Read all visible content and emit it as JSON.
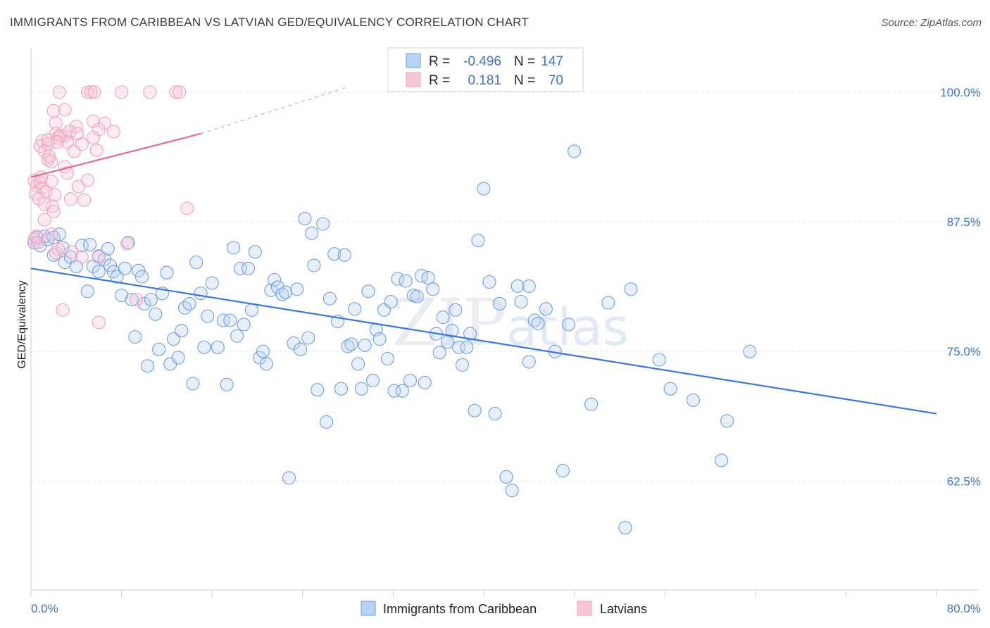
{
  "title": "IMMIGRANTS FROM CARIBBEAN VS LATVIAN GED/EQUIVALENCY CORRELATION CHART",
  "source": "Source: ZipAtlas.com",
  "watermark": "ZIPatlas",
  "chart_data": {
    "type": "scatter",
    "ylabel": "GED/Equivalency",
    "xlim": [
      0,
      80
    ],
    "ylim": [
      52,
      104
    ],
    "x_tick_labels": [
      "0.0%",
      "80.0%"
    ],
    "y_ticks": [
      62.5,
      75.0,
      87.5,
      100.0
    ],
    "y_tick_labels": [
      "62.5%",
      "75.0%",
      "87.5%",
      "100.0%"
    ],
    "grid": true,
    "legend": {
      "placement": "top-center",
      "rows": [
        {
          "r_label": "R =",
          "r_value": "-0.496",
          "n_label": "N =",
          "n_value": "147"
        },
        {
          "r_label": "R =",
          "r_value": "0.181",
          "n_label": "N =",
          "n_value": "70"
        }
      ]
    },
    "colors": {
      "blue": "#6f9fe0",
      "blue_line": "#3b78d4",
      "pink": "#f0a0bd",
      "pink_line": "#e46a95"
    },
    "series": [
      {
        "name": "Immigrants from Caribbean",
        "trend": {
          "x": [
            0,
            80
          ],
          "y": [
            83.0,
            69.0
          ]
        },
        "points": [
          [
            0.3,
            85.5
          ],
          [
            0.5,
            86.0
          ],
          [
            0.8,
            85.2
          ],
          [
            1.2,
            86.1
          ],
          [
            1.5,
            85.8
          ],
          [
            2.0,
            86.0
          ],
          [
            2.5,
            86.3
          ],
          [
            2.8,
            85.0
          ],
          [
            3.0,
            83.6
          ],
          [
            3.5,
            84.1
          ],
          [
            4.0,
            83.2
          ],
          [
            4.5,
            85.2
          ],
          [
            5.0,
            80.8
          ],
          [
            5.2,
            85.3
          ],
          [
            5.5,
            83.2
          ],
          [
            6.0,
            84.2
          ],
          [
            6.5,
            83.9
          ],
          [
            6.8,
            84.9
          ],
          [
            7.0,
            83.3
          ],
          [
            7.3,
            82.7
          ],
          [
            7.6,
            82.2
          ],
          [
            8.0,
            80.4
          ],
          [
            8.3,
            83.0
          ],
          [
            8.6,
            85.5
          ],
          [
            8.9,
            80.0
          ],
          [
            9.2,
            76.4
          ],
          [
            9.5,
            82.8
          ],
          [
            9.8,
            82.2
          ],
          [
            10.0,
            79.6
          ],
          [
            10.3,
            73.6
          ],
          [
            10.6,
            80.0
          ],
          [
            11.0,
            78.6
          ],
          [
            11.3,
            75.2
          ],
          [
            11.6,
            80.6
          ],
          [
            12.0,
            82.6
          ],
          [
            12.3,
            73.8
          ],
          [
            12.6,
            76.2
          ],
          [
            13.0,
            74.4
          ],
          [
            13.3,
            77.0
          ],
          [
            13.6,
            79.2
          ],
          [
            14.0,
            79.6
          ],
          [
            14.3,
            71.9
          ],
          [
            14.6,
            83.6
          ],
          [
            15.0,
            80.6
          ],
          [
            15.3,
            75.4
          ],
          [
            15.6,
            78.4
          ],
          [
            16.0,
            81.6
          ],
          [
            16.5,
            75.4
          ],
          [
            17.0,
            78.0
          ],
          [
            17.3,
            71.8
          ],
          [
            17.6,
            78.0
          ],
          [
            17.9,
            85.0
          ],
          [
            18.2,
            76.5
          ],
          [
            18.5,
            83.0
          ],
          [
            18.8,
            77.6
          ],
          [
            19.2,
            83.0
          ],
          [
            19.5,
            79.0
          ],
          [
            19.8,
            84.6
          ],
          [
            20.2,
            74.4
          ],
          [
            20.5,
            75.0
          ],
          [
            20.8,
            73.8
          ],
          [
            21.2,
            80.9
          ],
          [
            21.5,
            81.9
          ],
          [
            21.8,
            81.2
          ],
          [
            22.2,
            80.5
          ],
          [
            22.5,
            80.7
          ],
          [
            22.8,
            62.8
          ],
          [
            23.2,
            75.8
          ],
          [
            23.5,
            81.0
          ],
          [
            23.8,
            75.2
          ],
          [
            24.2,
            87.8
          ],
          [
            24.5,
            76.3
          ],
          [
            24.8,
            86.4
          ],
          [
            25.0,
            83.3
          ],
          [
            25.3,
            71.3
          ],
          [
            25.8,
            87.3
          ],
          [
            26.1,
            68.2
          ],
          [
            26.4,
            80.1
          ],
          [
            26.8,
            84.4
          ],
          [
            27.1,
            77.9
          ],
          [
            27.4,
            71.4
          ],
          [
            27.7,
            84.3
          ],
          [
            28.0,
            75.5
          ],
          [
            28.3,
            75.7
          ],
          [
            28.6,
            79.1
          ],
          [
            28.9,
            73.8
          ],
          [
            29.2,
            71.4
          ],
          [
            29.5,
            75.6
          ],
          [
            29.8,
            80.8
          ],
          [
            30.2,
            72.2
          ],
          [
            30.5,
            77.1
          ],
          [
            30.8,
            76.2
          ],
          [
            31.2,
            79.0
          ],
          [
            31.5,
            74.3
          ],
          [
            31.8,
            79.8
          ],
          [
            32.1,
            71.2
          ],
          [
            32.4,
            82.0
          ],
          [
            32.8,
            71.2
          ],
          [
            33.1,
            81.8
          ],
          [
            33.5,
            72.2
          ],
          [
            33.8,
            80.4
          ],
          [
            34.1,
            80.3
          ],
          [
            34.5,
            82.3
          ],
          [
            34.8,
            72.0
          ],
          [
            35.1,
            82.1
          ],
          [
            35.5,
            81.0
          ],
          [
            35.8,
            76.7
          ],
          [
            36.1,
            74.9
          ],
          [
            36.4,
            78.3
          ],
          [
            36.8,
            75.9
          ],
          [
            37.2,
            77.0
          ],
          [
            37.5,
            79.0
          ],
          [
            37.8,
            75.4
          ],
          [
            38.1,
            73.7
          ],
          [
            38.5,
            75.4
          ],
          [
            38.8,
            76.7
          ],
          [
            39.2,
            69.3
          ],
          [
            39.5,
            85.7
          ],
          [
            40.0,
            90.7
          ],
          [
            40.5,
            81.7
          ],
          [
            41.0,
            69.0
          ],
          [
            41.4,
            79.6
          ],
          [
            42.0,
            62.9
          ],
          [
            42.5,
            61.6
          ],
          [
            43.0,
            81.3
          ],
          [
            43.3,
            79.8
          ],
          [
            44.0,
            81.3
          ],
          [
            44.5,
            78.0
          ],
          [
            44.8,
            77.7
          ],
          [
            45.5,
            79.1
          ],
          [
            46.3,
            75.0
          ],
          [
            47.0,
            63.5
          ],
          [
            47.5,
            77.6
          ],
          [
            48.0,
            94.3
          ],
          [
            49.5,
            69.9
          ],
          [
            51.0,
            79.7
          ],
          [
            53.0,
            81.0
          ],
          [
            56.5,
            71.4
          ],
          [
            58.5,
            70.3
          ],
          [
            61.0,
            64.5
          ],
          [
            61.5,
            68.3
          ],
          [
            52.5,
            58.0
          ],
          [
            63.5,
            75.0
          ],
          [
            55.5,
            74.2
          ],
          [
            44.0,
            74.0
          ],
          [
            2.0,
            84.3
          ],
          [
            6.0,
            82.7
          ]
        ]
      },
      {
        "name": "Latvians",
        "trend": {
          "x": [
            0,
            15
          ],
          "y": [
            91.8,
            96.0
          ]
        },
        "trend_dashed": {
          "x": [
            15,
            28
          ],
          "y": [
            96.0,
            100.5
          ]
        },
        "points": [
          [
            2.5,
            100.0
          ],
          [
            5.0,
            100.0
          ],
          [
            5.3,
            100.0
          ],
          [
            5.6,
            100.0
          ],
          [
            8.0,
            100.0
          ],
          [
            10.5,
            100.0
          ],
          [
            12.8,
            100.0
          ],
          [
            13.1,
            100.0
          ],
          [
            2.0,
            98.2
          ],
          [
            3.0,
            98.3
          ],
          [
            2.2,
            97.0
          ],
          [
            4.0,
            96.7
          ],
          [
            5.5,
            97.2
          ],
          [
            6.5,
            97.0
          ],
          [
            6.0,
            96.4
          ],
          [
            7.3,
            96.2
          ],
          [
            2.2,
            96.0
          ],
          [
            2.4,
            95.6
          ],
          [
            3.0,
            95.8
          ],
          [
            1.0,
            95.3
          ],
          [
            1.5,
            95.0
          ],
          [
            3.2,
            95.2
          ],
          [
            4.5,
            95.0
          ],
          [
            5.5,
            95.6
          ],
          [
            0.8,
            94.8
          ],
          [
            1.2,
            94.3
          ],
          [
            3.8,
            94.3
          ],
          [
            5.8,
            94.4
          ],
          [
            1.5,
            93.5
          ],
          [
            1.8,
            93.3
          ],
          [
            3.0,
            92.8
          ],
          [
            3.2,
            92.2
          ],
          [
            5.0,
            91.5
          ],
          [
            0.3,
            91.5
          ],
          [
            0.5,
            91.0
          ],
          [
            0.8,
            91.3
          ],
          [
            1.0,
            90.8
          ],
          [
            1.3,
            90.4
          ],
          [
            1.8,
            91.4
          ],
          [
            2.1,
            90.1
          ],
          [
            4.2,
            90.9
          ],
          [
            0.4,
            90.2
          ],
          [
            0.7,
            89.7
          ],
          [
            1.2,
            89.2
          ],
          [
            1.9,
            89.0
          ],
          [
            3.5,
            89.7
          ],
          [
            4.7,
            89.6
          ],
          [
            2.0,
            88.5
          ],
          [
            1.2,
            87.7
          ],
          [
            0.5,
            86.1
          ],
          [
            1.8,
            86.3
          ],
          [
            13.8,
            88.8
          ],
          [
            0.3,
            85.8
          ],
          [
            0.6,
            85.5
          ],
          [
            2.2,
            84.5
          ],
          [
            2.4,
            84.9
          ],
          [
            3.6,
            84.6
          ],
          [
            4.5,
            84.1
          ],
          [
            6.0,
            84.1
          ],
          [
            8.5,
            85.4
          ],
          [
            2.8,
            79.0
          ],
          [
            6.0,
            77.8
          ],
          [
            9.3,
            80.0
          ],
          [
            1.5,
            95.4
          ],
          [
            2.6,
            95.8
          ],
          [
            3.4,
            96.2
          ],
          [
            0.9,
            91.8
          ],
          [
            2.3,
            95.2
          ],
          [
            1.6,
            93.8
          ],
          [
            4.1,
            96.0
          ]
        ]
      }
    ]
  }
}
